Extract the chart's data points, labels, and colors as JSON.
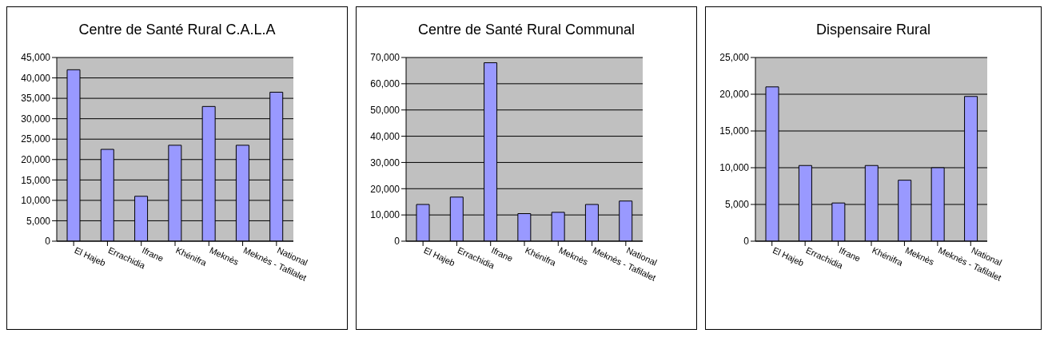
{
  "chart_data": [
    {
      "type": "bar",
      "title": "Centre de Santé Rural C.A.L.A",
      "categories": [
        "El Hajeb",
        "Errachidia",
        "Ifrane",
        "Khénifra",
        "Meknès",
        "Meknès - Tafilalet",
        "National"
      ],
      "values": [
        42000,
        22500,
        11000,
        23500,
        33000,
        23500,
        36500
      ],
      "color": "#9999ff",
      "ylim": [
        0,
        45000
      ],
      "yticks": [
        {
          "value": 0,
          "label": "0"
        },
        {
          "value": 5000,
          "label": "5,000"
        },
        {
          "value": 10000,
          "label": "10,000"
        },
        {
          "value": 15000,
          "label": "15,000"
        },
        {
          "value": 20000,
          "label": "20,000"
        },
        {
          "value": 25000,
          "label": "25,000"
        },
        {
          "value": 30000,
          "label": "30,000"
        },
        {
          "value": 35000,
          "label": "35,000"
        },
        {
          "value": 40000,
          "label": "40,000"
        },
        {
          "value": 45000,
          "label": "45,000"
        }
      ],
      "grid": "y"
    },
    {
      "type": "bar",
      "title": "Centre de Santé Rural Communal",
      "categories": [
        "El Hajeb",
        "Errachidia",
        "Ifrane",
        "Khénifra",
        "Meknès",
        "Meknès - Tafilalet",
        "National"
      ],
      "values": [
        14000,
        16800,
        68000,
        10500,
        11000,
        14000,
        15300
      ],
      "color": "#9999ff",
      "ylim": [
        0,
        70000
      ],
      "yticks": [
        {
          "value": 0,
          "label": "0"
        },
        {
          "value": 10000,
          "label": "10,000"
        },
        {
          "value": 20000,
          "label": "20,000"
        },
        {
          "value": 30000,
          "label": "30,000"
        },
        {
          "value": 40000,
          "label": "40,000"
        },
        {
          "value": 50000,
          "label": "50,000"
        },
        {
          "value": 60000,
          "label": "60,000"
        },
        {
          "value": 70000,
          "label": "70,000"
        }
      ],
      "grid": "y"
    },
    {
      "type": "bar",
      "title": "Dispensaire Rural",
      "categories": [
        "El Hajeb",
        "Errachidia",
        "Ifrane",
        "Khénifra",
        "Meknès",
        "Meknès - Tafilalet",
        "National"
      ],
      "values": [
        21000,
        10300,
        5200,
        10300,
        8300,
        10000,
        19700
      ],
      "color": "#9999ff",
      "ylim": [
        0,
        25000
      ],
      "yticks": [
        {
          "value": 0,
          "label": "0"
        },
        {
          "value": 5000,
          "label": "5,000"
        },
        {
          "value": 10000,
          "label": "10,000"
        },
        {
          "value": 15000,
          "label": "15,000"
        },
        {
          "value": 20000,
          "label": "20,000"
        },
        {
          "value": 25000,
          "label": "25,000"
        }
      ],
      "grid": "y"
    }
  ]
}
